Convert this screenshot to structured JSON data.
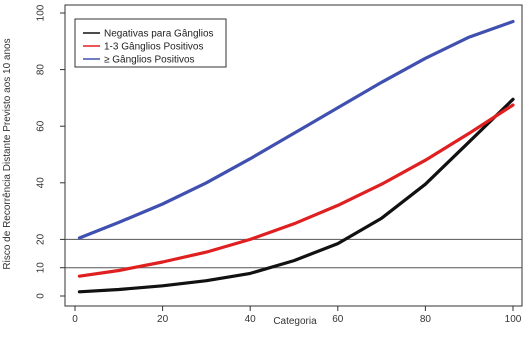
{
  "chart_data": {
    "type": "line",
    "title": "",
    "xlabel": "Categoria",
    "ylabel": "Risco de Recorrência Distante Previsto aos 10 anos",
    "xlim": [
      0,
      100
    ],
    "ylim": [
      0,
      100
    ],
    "x_ticks": [
      "0",
      "20",
      "40",
      "60",
      "80",
      "100"
    ],
    "y_ticks": [
      "0",
      "10",
      "20",
      "40",
      "60",
      "80",
      "100"
    ],
    "grid": false,
    "legend_position": "top-left",
    "reference_lines": [
      {
        "axis": "y",
        "value": 10
      },
      {
        "axis": "y",
        "value": 20
      }
    ],
    "series": [
      {
        "name": "Negativas para Gânglios",
        "color": "#111111",
        "x": [
          1,
          10,
          20,
          30,
          40,
          50,
          60,
          70,
          80,
          90,
          100
        ],
        "y": [
          1.5,
          2.3,
          3.6,
          5.4,
          8.0,
          12.5,
          18.5,
          27.5,
          39.5,
          54.5,
          69.5
        ]
      },
      {
        "name": "1-3 Gânglios Positivos",
        "color": "#e02020",
        "x": [
          1,
          10,
          20,
          30,
          40,
          50,
          60,
          70,
          80,
          90,
          100
        ],
        "y": [
          7.0,
          9.0,
          12.0,
          15.5,
          20.0,
          25.5,
          32.0,
          39.5,
          48.0,
          57.5,
          67.5
        ]
      },
      {
        "name": "≥ Gânglios Positivos",
        "color": "#4050b0",
        "x": [
          1,
          10,
          20,
          30,
          40,
          50,
          60,
          70,
          80,
          90,
          100
        ],
        "y": [
          20.5,
          26.0,
          32.5,
          40.0,
          48.5,
          57.5,
          66.5,
          75.5,
          84.0,
          91.5,
          97.0
        ]
      }
    ]
  }
}
